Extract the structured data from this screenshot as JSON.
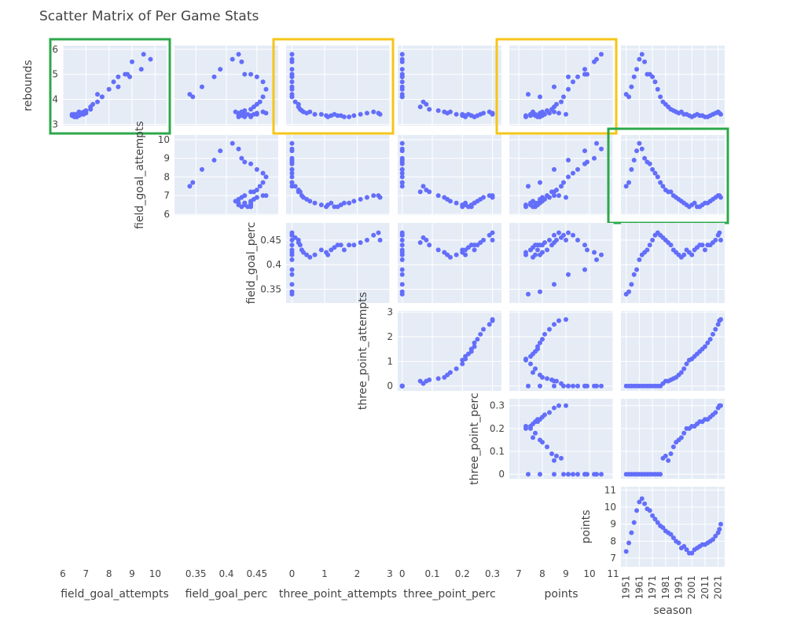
{
  "chart_data": {
    "type": "scatter",
    "subtype": "scatter-matrix-upper-triangle",
    "title": "Scatter Matrix of Per Game Stats",
    "marker_color": "#636EFA",
    "plot_bg": "#E5ECF6",
    "highlight_colors": {
      "green": "#2CA84B",
      "yellow": "#F5C518"
    },
    "highlights": [
      {
        "row": "rebounds",
        "col": "field_goal_attempts",
        "color": "green"
      },
      {
        "row": "rebounds",
        "col": "three_point_attempts",
        "color": "yellow"
      },
      {
        "row": "rebounds",
        "col": "points",
        "color": "yellow"
      },
      {
        "row": "field_goal_attempts",
        "col": "season",
        "color": "green"
      }
    ],
    "row_variables": [
      "rebounds",
      "field_goal_attempts",
      "field_goal_perc",
      "three_point_attempts",
      "three_point_perc",
      "points"
    ],
    "column_variables": [
      "field_goal_attempts",
      "field_goal_perc",
      "three_point_attempts",
      "three_point_perc",
      "points",
      "season"
    ],
    "x_axes": {
      "field_goal_attempts": {
        "label": "field_goal_attempts",
        "ticks": [
          "6",
          "7",
          "8",
          "9",
          "10"
        ],
        "range": [
          6,
          10.5
        ]
      },
      "field_goal_perc": {
        "label": "field_goal_perc",
        "ticks": [
          "0.35",
          "0.4",
          "0.45"
        ],
        "range": [
          0.315,
          0.485
        ]
      },
      "three_point_attempts": {
        "label": "three_point_attempts",
        "ticks": [
          "0",
          "1",
          "2",
          "3"
        ],
        "range": [
          -0.18,
          3.0
        ]
      },
      "three_point_perc": {
        "label": "three_point_perc",
        "ticks": [
          "0",
          "0.1",
          "0.2",
          "0.3"
        ],
        "range": [
          -0.015,
          0.33
        ]
      },
      "points": {
        "label": "points",
        "ticks": [
          "7",
          "8",
          "9",
          "10",
          "11"
        ],
        "range": [
          6.6,
          11.0
        ]
      },
      "season": {
        "label": "season",
        "ticks": [
          "1951",
          "1961",
          "1971",
          "1981",
          "1991",
          "2001",
          "2011",
          "2021"
        ],
        "range": [
          1947,
          2026
        ]
      }
    },
    "y_axes": {
      "rebounds": {
        "label": "rebounds",
        "ticks": [
          "3",
          "4",
          "5",
          "6"
        ],
        "range": [
          2.95,
          6.15
        ]
      },
      "field_goal_attempts": {
        "label": "field_goal_attempts",
        "ticks": [
          "6",
          "7",
          "8",
          "9",
          "10"
        ],
        "range": [
          5.95,
          10.25
        ]
      },
      "field_goal_perc": {
        "label": "field_goal_perc",
        "ticks": [
          "0.35",
          "0.4",
          "0.45"
        ],
        "range": [
          0.322,
          0.485
        ]
      },
      "three_point_attempts": {
        "label": "three_point_attempts",
        "ticks": [
          "0",
          "1",
          "2",
          "3"
        ],
        "range": [
          -0.2,
          3.05
        ]
      },
      "three_point_perc": {
        "label": "three_point_perc",
        "ticks": [
          "0",
          "0.1",
          "0.2",
          "0.3"
        ],
        "range": [
          -0.02,
          0.33
        ]
      },
      "points": {
        "label": "points",
        "ticks": [
          "7",
          "8",
          "9",
          "10",
          "11"
        ],
        "range": [
          6.5,
          11.2
        ]
      }
    },
    "approximate_series_by_season": {
      "season": [
        1951,
        1953,
        1955,
        1957,
        1959,
        1961,
        1963,
        1965,
        1967,
        1969,
        1971,
        1973,
        1975,
        1977,
        1979,
        1981,
        1983,
        1985,
        1987,
        1989,
        1991,
        1993,
        1995,
        1997,
        1999,
        2001,
        2003,
        2005,
        2007,
        2009,
        2011,
        2013,
        2015,
        2017,
        2019,
        2021,
        2022,
        2023
      ],
      "rebounds": [
        4.2,
        4.1,
        4.5,
        4.9,
        5.2,
        5.6,
        5.8,
        5.5,
        5.0,
        5.0,
        4.9,
        4.7,
        4.4,
        4.1,
        3.9,
        3.8,
        3.7,
        3.6,
        3.55,
        3.5,
        3.45,
        3.5,
        3.4,
        3.4,
        3.35,
        3.3,
        3.35,
        3.4,
        3.35,
        3.35,
        3.3,
        3.3,
        3.35,
        3.4,
        3.45,
        3.5,
        3.45,
        3.4
      ],
      "field_goal_attempts": [
        7.5,
        7.7,
        8.4,
        8.9,
        9.4,
        9.8,
        9.5,
        9.0,
        8.8,
        8.7,
        8.4,
        8.2,
        8.0,
        7.7,
        7.5,
        7.3,
        7.2,
        7.2,
        7.0,
        6.9,
        6.8,
        6.7,
        6.6,
        6.5,
        6.4,
        6.5,
        6.6,
        6.4,
        6.4,
        6.5,
        6.6,
        6.6,
        6.7,
        6.8,
        6.9,
        7.0,
        7.0,
        6.9
      ],
      "field_goal_perc": [
        0.34,
        0.345,
        0.36,
        0.38,
        0.39,
        0.41,
        0.42,
        0.425,
        0.43,
        0.44,
        0.45,
        0.46,
        0.465,
        0.46,
        0.455,
        0.45,
        0.445,
        0.44,
        0.43,
        0.425,
        0.42,
        0.415,
        0.42,
        0.43,
        0.425,
        0.42,
        0.43,
        0.435,
        0.44,
        0.44,
        0.43,
        0.44,
        0.44,
        0.445,
        0.45,
        0.46,
        0.465,
        0.45
      ],
      "three_point_attempts": [
        0,
        0,
        0,
        0,
        0,
        0,
        0,
        0,
        0,
        0,
        0,
        0,
        0,
        0,
        0.1,
        0.2,
        0.2,
        0.25,
        0.3,
        0.35,
        0.45,
        0.55,
        0.7,
        0.9,
        1.05,
        1.1,
        1.2,
        1.3,
        1.4,
        1.5,
        1.6,
        1.75,
        1.9,
        2.1,
        2.3,
        2.5,
        2.65,
        2.7
      ],
      "three_point_perc": [
        0,
        0,
        0,
        0,
        0,
        0,
        0,
        0,
        0,
        0,
        0,
        0,
        0,
        0,
        0.07,
        0.08,
        0.06,
        0.09,
        0.12,
        0.14,
        0.15,
        0.16,
        0.18,
        0.2,
        0.2,
        0.21,
        0.21,
        0.22,
        0.23,
        0.23,
        0.24,
        0.24,
        0.25,
        0.26,
        0.27,
        0.29,
        0.3,
        0.3
      ],
      "points": [
        7.4,
        7.9,
        8.5,
        9.1,
        9.8,
        10.3,
        10.5,
        10.2,
        9.9,
        9.8,
        9.5,
        9.3,
        9.1,
        8.9,
        8.8,
        8.6,
        8.5,
        8.4,
        8.2,
        8.0,
        7.9,
        7.6,
        7.7,
        7.5,
        7.3,
        7.3,
        7.5,
        7.6,
        7.7,
        7.8,
        7.8,
        7.9,
        8.0,
        8.1,
        8.3,
        8.5,
        8.7,
        9.0
      ]
    }
  }
}
